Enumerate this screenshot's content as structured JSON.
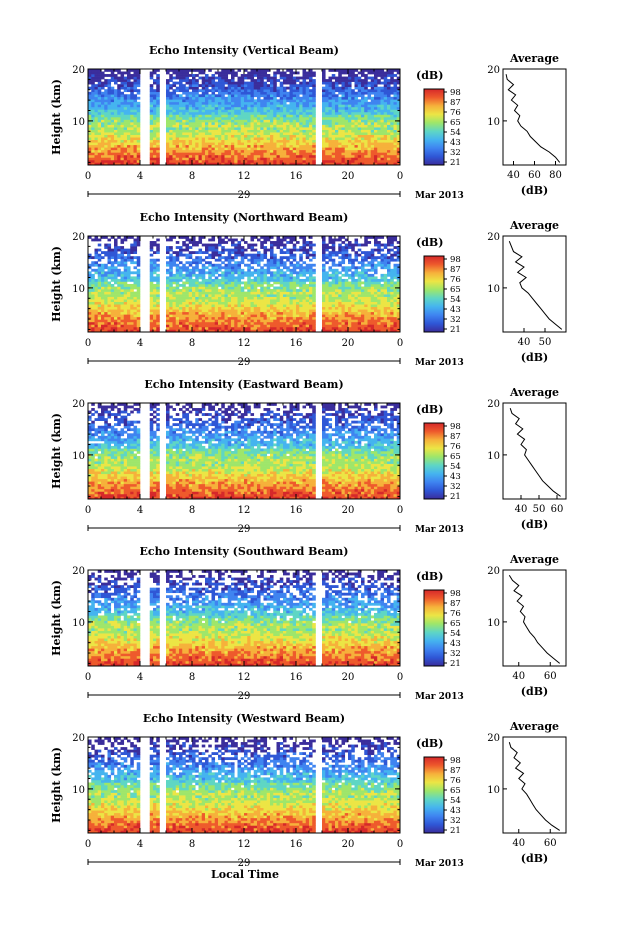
{
  "colors": {
    "colormap": [
      "#3a2d9c",
      "#2f57d6",
      "#3f84f0",
      "#45b4ef",
      "#5fd6c4",
      "#9ee66a",
      "#ece545",
      "#f6b13b",
      "#ee5a2c",
      "#d6282a"
    ],
    "axis": "#000000",
    "profile_line": "#000000"
  },
  "shared": {
    "xlabel": "Local Time",
    "ylabel": "Height (km)",
    "colorbar_unit": "(dB)",
    "colorbar_ticks": [
      "98",
      "87",
      "76",
      "65",
      "54",
      "43",
      "32",
      "21"
    ],
    "x_ticks": [
      "0",
      "4",
      "8",
      "12",
      "16",
      "20",
      "0"
    ],
    "height_ticks": [
      "20",
      "10"
    ],
    "profile_title": "Average",
    "profile_xlabel": "(dB)"
  },
  "chart_data": [
    {
      "type": "heatmap",
      "title": "Echo Intensity (Vertical Beam)",
      "date_label": "29",
      "month_label": "Mar 2013",
      "x_range_hours": [
        0,
        24
      ],
      "y_range_km": [
        1.5,
        20
      ],
      "data_gaps_hours": [
        [
          4.0,
          4.8
        ],
        [
          5.6,
          6.1
        ],
        [
          17.5,
          18.0
        ]
      ],
      "profile": {
        "type": "line",
        "xlim": [
          30,
          90
        ],
        "xticks": [
          "40",
          "60",
          "80"
        ],
        "height_km": [
          2,
          3,
          4,
          5,
          6,
          7,
          8,
          9,
          10,
          11,
          12,
          13,
          14,
          15,
          16,
          17,
          18,
          19
        ],
        "value_db": [
          84,
          80,
          74,
          66,
          61,
          56,
          53,
          47,
          44,
          46,
          41,
          44,
          38,
          42,
          35,
          40,
          34,
          33
        ]
      }
    },
    {
      "type": "heatmap",
      "title": "Echo Intensity (Northward Beam)",
      "date_label": "29",
      "month_label": "Mar 2013",
      "x_range_hours": [
        0,
        24
      ],
      "y_range_km": [
        1.5,
        20
      ],
      "data_gaps_hours": [
        [
          4.0,
          4.8
        ],
        [
          5.6,
          6.1
        ],
        [
          17.5,
          18.0
        ]
      ],
      "profile": {
        "type": "line",
        "xlim": [
          30,
          60
        ],
        "xticks": [
          "40",
          "50"
        ],
        "height_km": [
          2,
          3,
          4,
          5,
          6,
          7,
          8,
          9,
          10,
          11,
          12,
          13,
          14,
          15,
          16,
          17,
          18,
          19
        ],
        "value_db": [
          58,
          55,
          52,
          50,
          48,
          46,
          44,
          42,
          39,
          38,
          41,
          37,
          40,
          36,
          39,
          35,
          34,
          33
        ]
      }
    },
    {
      "type": "heatmap",
      "title": "Echo Intensity (Eastward Beam)",
      "date_label": "29",
      "month_label": "Mar 2013",
      "x_range_hours": [
        0,
        24
      ],
      "y_range_km": [
        1.5,
        20
      ],
      "data_gaps_hours": [
        [
          4.0,
          4.8
        ],
        [
          5.6,
          6.1
        ],
        [
          17.5,
          18.0
        ]
      ],
      "profile": {
        "type": "line",
        "xlim": [
          30,
          65
        ],
        "xticks": [
          "40",
          "50",
          "60"
        ],
        "height_km": [
          2,
          3,
          4,
          5,
          6,
          7,
          8,
          9,
          10,
          11,
          12,
          13,
          14,
          15,
          16,
          17,
          18,
          19
        ],
        "value_db": [
          62,
          58,
          55,
          52,
          50,
          48,
          46,
          44,
          42,
          43,
          40,
          42,
          38,
          41,
          37,
          39,
          35,
          34
        ]
      }
    },
    {
      "type": "heatmap",
      "title": "Echo Intensity (Southward Beam)",
      "date_label": "29",
      "month_label": "Mar 2013",
      "x_range_hours": [
        0,
        24
      ],
      "y_range_km": [
        1.5,
        20
      ],
      "data_gaps_hours": [
        [
          4.0,
          4.8
        ],
        [
          5.6,
          6.1
        ],
        [
          17.5,
          18.0
        ]
      ],
      "profile": {
        "type": "line",
        "xlim": [
          30,
          70
        ],
        "xticks": [
          "40",
          "60"
        ],
        "height_km": [
          2,
          3,
          4,
          5,
          6,
          7,
          8,
          9,
          10,
          11,
          12,
          13,
          14,
          15,
          16,
          17,
          18,
          19
        ],
        "value_db": [
          66,
          62,
          58,
          55,
          52,
          50,
          47,
          45,
          43,
          44,
          41,
          43,
          39,
          42,
          37,
          40,
          36,
          34
        ]
      }
    },
    {
      "type": "heatmap",
      "title": "Echo Intensity (Westward Beam)",
      "date_label": "29",
      "month_label": "Mar 2013",
      "x_range_hours": [
        0,
        24
      ],
      "y_range_km": [
        1.5,
        20
      ],
      "data_gaps_hours": [
        [
          4.0,
          4.8
        ],
        [
          5.6,
          6.1
        ],
        [
          17.5,
          18.0
        ]
      ],
      "profile": {
        "type": "line",
        "xlim": [
          30,
          70
        ],
        "xticks": [
          "40",
          "60"
        ],
        "height_km": [
          2,
          3,
          4,
          5,
          6,
          7,
          8,
          9,
          10,
          11,
          12,
          13,
          14,
          15,
          16,
          17,
          18,
          19
        ],
        "value_db": [
          66,
          61,
          57,
          54,
          51,
          49,
          47,
          45,
          42,
          44,
          40,
          43,
          38,
          41,
          37,
          39,
          35,
          34
        ]
      }
    }
  ]
}
